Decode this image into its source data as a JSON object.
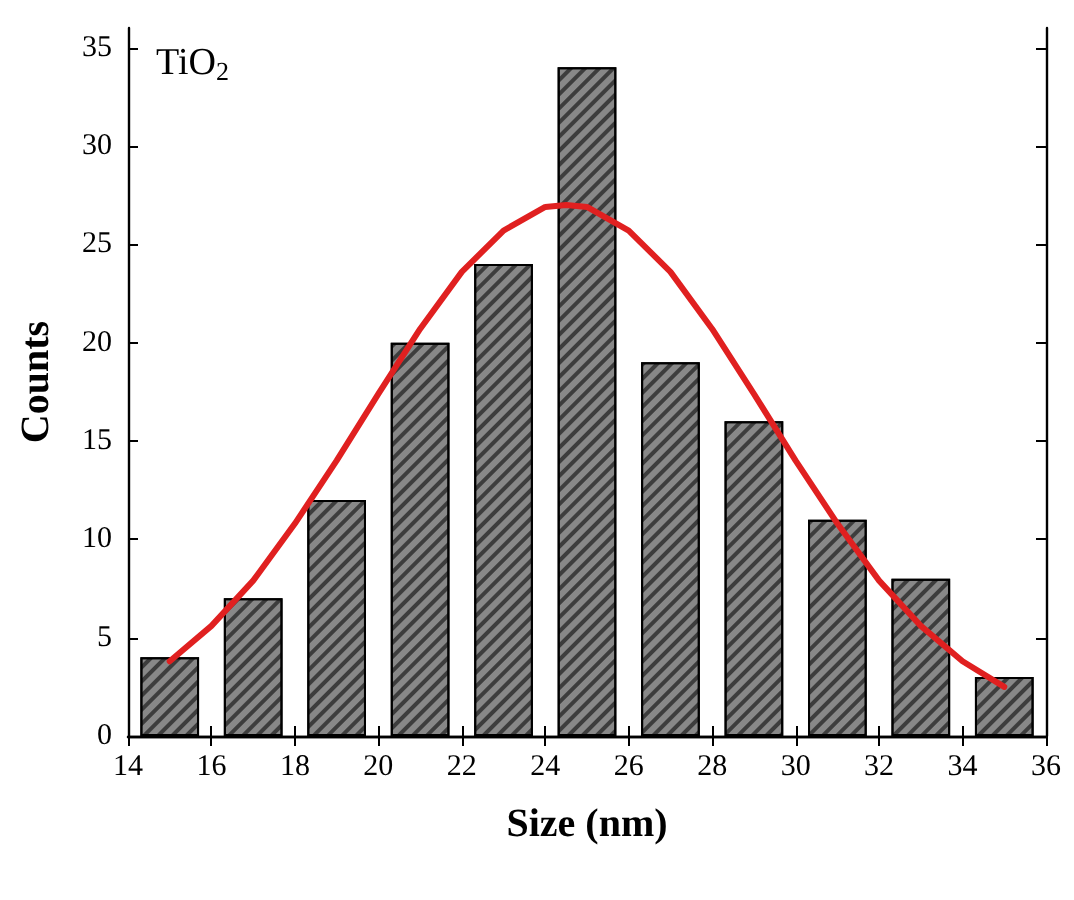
{
  "chart_data": {
    "type": "bar",
    "xlabel": "Size (nm)",
    "ylabel": "Counts",
    "annotations": [
      "TiO$_{2}$"
    ],
    "x": [
      15,
      17,
      19,
      21,
      23,
      25,
      27,
      29,
      31,
      33,
      35
    ],
    "series": [
      {
        "color": "#888888",
        "values": [
          4,
          7,
          12,
          20,
          24,
          34,
          19,
          16,
          11,
          8,
          3
        ]
      },
      {
        "type": "line",
        "color": "#e02020",
        "x": [
          15,
          16,
          17,
          18,
          19,
          20,
          21,
          22,
          23,
          24,
          24.5,
          25,
          26,
          27,
          28,
          29,
          30,
          31,
          32,
          33,
          34,
          35
        ],
        "values": [
          3.8,
          5.6,
          7.9,
          10.8,
          14.0,
          17.4,
          20.7,
          23.6,
          25.7,
          26.9,
          27,
          26.9,
          25.7,
          23.6,
          20.7,
          17.4,
          14.0,
          10.8,
          7.9,
          5.6,
          3.8,
          2.5
        ]
      }
    ],
    "xlim": [
      14,
      36
    ],
    "xticks": [
      14,
      16,
      18,
      20,
      22,
      24,
      26,
      28,
      30,
      32,
      34,
      36
    ],
    "ylim": [
      0,
      36
    ],
    "yticks": [
      0,
      5,
      10,
      15,
      20,
      25,
      30,
      35
    ],
    "grid": false,
    "marker": "none",
    "line_style": "solid"
  }
}
